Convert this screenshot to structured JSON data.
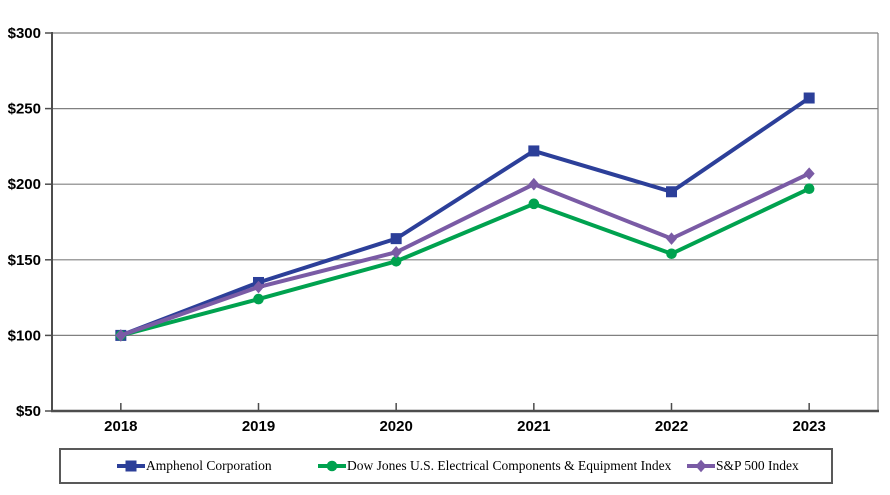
{
  "chart_data": {
    "type": "line",
    "title": "",
    "xlabel": "",
    "ylabel": "",
    "categories": [
      "2018",
      "2019",
      "2020",
      "2021",
      "2022",
      "2023"
    ],
    "series": [
      {
        "name": "Amphenol Corporation",
        "marker": "square",
        "color": "#2c3f99",
        "values": [
          100,
          135,
          164,
          222,
          195,
          257
        ]
      },
      {
        "name": "Dow Jones U.S. Electrical Components & Equipment Index",
        "marker": "circle",
        "color": "#00a24f",
        "values": [
          100,
          124,
          149,
          187,
          154,
          197
        ]
      },
      {
        "name": "S&P 500 Index",
        "marker": "diamond",
        "color": "#7a5ba5",
        "values": [
          100,
          132,
          155,
          200,
          164,
          207
        ]
      }
    ],
    "ylim": [
      50,
      300
    ],
    "y_tick_interval": 50,
    "y_tick_labels": [
      "$50",
      "$100",
      "$150",
      "$200",
      "$250",
      "$300"
    ],
    "grid": true,
    "legend_position": "bottom"
  },
  "colors": {
    "gridline": "#808080",
    "axis": "#4d4d4d",
    "legend_border": "#595959",
    "text": "#000000"
  }
}
